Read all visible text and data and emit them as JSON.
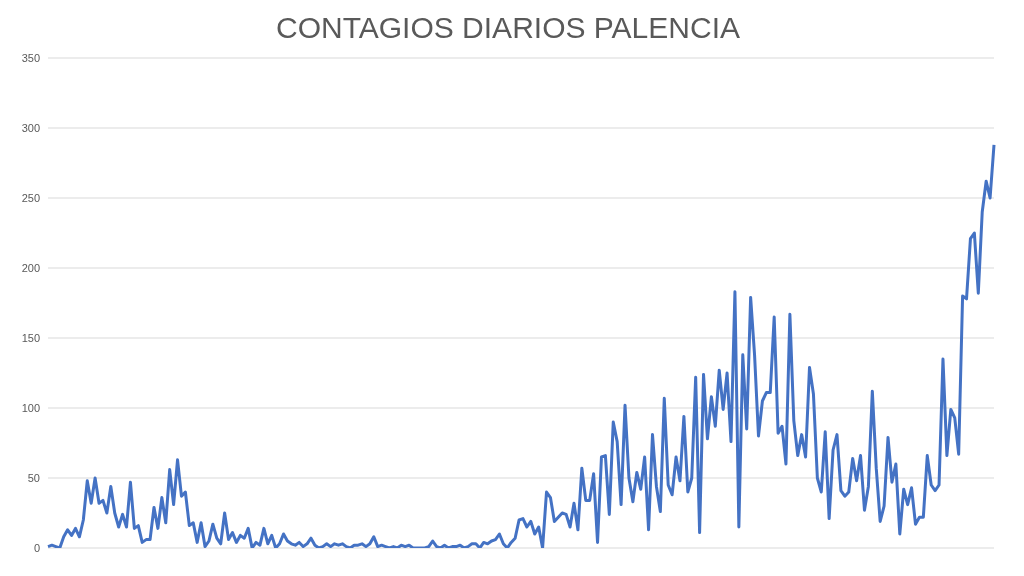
{
  "chart_data": {
    "type": "line",
    "title": "CONTAGIOS DIARIOS PALENCIA",
    "categories": [
      null,
      null,
      null,
      null,
      null,
      null,
      null,
      null,
      null,
      null,
      null,
      null,
      null,
      null,
      null,
      null,
      null,
      null,
      null,
      null,
      null,
      null,
      null,
      null,
      null,
      null,
      null,
      null,
      null,
      null,
      null,
      null,
      null,
      null,
      null,
      null,
      null,
      null,
      null,
      null,
      null,
      null,
      null,
      null,
      null,
      null,
      null,
      null,
      null,
      null,
      null,
      null,
      null,
      null,
      null,
      null,
      null,
      null,
      null,
      null,
      null,
      null,
      null,
      null,
      null,
      null,
      null,
      null,
      null,
      null,
      null,
      null,
      null,
      null,
      null,
      null,
      null,
      null,
      null,
      null,
      null,
      null,
      null,
      null,
      null,
      null,
      null,
      null,
      null,
      null,
      null,
      null,
      null,
      null,
      null,
      null,
      null,
      null,
      null,
      null,
      null,
      null,
      null,
      null,
      null,
      null,
      null,
      null,
      null,
      null,
      null,
      null,
      null,
      null,
      null,
      null,
      null,
      null,
      null,
      null,
      null,
      null,
      null,
      null,
      null,
      null,
      null,
      null,
      null,
      null,
      null,
      null,
      null,
      null,
      null,
      null,
      null,
      null,
      null,
      null,
      null,
      null,
      null,
      null,
      null,
      null,
      null,
      null,
      null,
      null,
      null,
      null,
      null,
      null,
      null,
      null,
      null,
      null,
      null,
      null,
      null,
      null,
      null,
      null,
      null,
      null,
      null,
      null,
      null,
      null,
      null,
      null,
      null,
      null,
      null,
      null,
      null,
      null,
      null,
      null,
      null,
      null,
      null,
      null,
      null,
      null,
      null,
      null,
      null,
      null,
      null,
      null,
      null,
      null,
      null,
      null,
      null,
      null,
      null,
      null,
      null,
      null,
      null,
      null,
      null,
      null,
      null,
      null,
      null,
      null,
      null,
      null,
      null,
      null,
      null,
      null,
      null,
      null,
      null,
      null,
      null,
      null,
      null,
      null,
      null,
      null,
      null,
      null,
      null,
      null,
      null,
      null,
      null,
      null,
      null,
      null,
      null,
      null,
      null,
      null,
      null,
      null
    ],
    "series": [
      {
        "color": "#4472c4",
        "values": [
          1,
          2,
          1,
          0,
          8,
          13,
          9,
          14,
          8,
          20,
          48,
          32,
          50,
          32,
          34,
          25,
          44,
          25,
          15,
          24,
          15,
          47,
          14,
          16,
          4,
          6,
          6,
          29,
          14,
          36,
          18,
          56,
          31,
          63,
          37,
          40,
          16,
          18,
          4,
          18,
          1,
          5,
          17,
          7,
          3,
          25,
          6,
          11,
          4,
          9,
          7,
          14,
          0,
          4,
          2,
          14,
          3,
          9,
          0,
          3,
          10,
          5,
          3,
          2,
          4,
          1,
          3,
          7,
          2,
          0,
          1,
          3,
          1,
          3,
          2,
          3,
          1,
          0,
          2,
          2,
          3,
          1,
          3,
          8,
          1,
          2,
          1,
          0,
          1,
          0,
          2,
          1,
          2,
          0,
          0,
          0,
          0,
          1,
          5,
          1,
          0,
          2,
          0,
          1,
          1,
          2,
          0,
          1,
          3,
          3,
          0,
          4,
          3,
          5,
          6,
          10,
          3,
          0,
          4,
          7,
          20,
          21,
          15,
          19,
          10,
          15,
          0,
          40,
          36,
          19,
          22,
          25,
          24,
          15,
          32,
          13,
          57,
          34,
          34,
          53,
          4,
          65,
          66,
          24,
          90,
          76,
          31,
          102,
          50,
          33,
          54,
          42,
          65,
          13,
          81,
          44,
          26,
          107,
          45,
          38,
          65,
          48,
          94,
          40,
          50,
          122,
          11,
          124,
          78,
          108,
          87,
          127,
          99,
          125,
          76,
          183,
          15,
          138,
          85,
          179,
          138,
          80,
          105,
          111,
          111,
          165,
          82,
          87,
          60,
          167,
          91,
          66,
          81,
          65,
          129,
          110,
          50,
          40,
          83,
          21,
          70,
          81,
          41,
          37,
          40,
          64,
          48,
          66,
          27,
          44,
          112,
          57,
          19,
          30,
          79,
          47,
          60,
          10,
          42,
          31,
          43,
          17,
          22,
          22,
          66,
          45,
          41,
          45,
          135,
          66,
          99,
          93,
          67,
          180,
          178,
          221,
          225,
          182,
          240,
          262,
          250,
          288
        ]
      }
    ],
    "ylim": [
      0,
      350
    ],
    "yticks": [
      0,
      50,
      100,
      150,
      200,
      250,
      300,
      350
    ],
    "grid": "y",
    "legend": false,
    "tick_labels": "y",
    "marker": "none",
    "line_style": "solid"
  }
}
